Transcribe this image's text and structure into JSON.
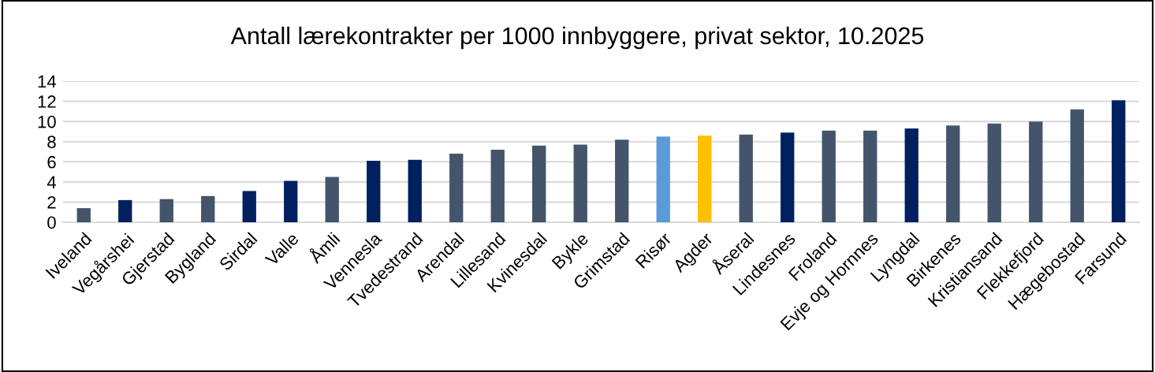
{
  "chart_data": {
    "type": "bar",
    "title": "Antall lærekontrakter per 1000 innbyggere, privat sektor, 10.2025",
    "categories": [
      "Iveland",
      "Vegårshei",
      "Gjerstad",
      "Bygland",
      "Sirdal",
      "Valle",
      "Åmli",
      "Vennesla",
      "Tvedestrand",
      "Arendal",
      "Lillesand",
      "Kvinesdal",
      "Bykle",
      "Grimstad",
      "Risør",
      "Agder",
      "Åseral",
      "Lindesnes",
      "Froland",
      "Evje og Hornnes",
      "Lyngdal",
      "Birkenes",
      "Kristiansand",
      "Flekkefjord",
      "Hægebostad",
      "Farsund"
    ],
    "values": [
      1.4,
      2.2,
      2.3,
      2.6,
      3.1,
      4.1,
      4.5,
      6.1,
      6.2,
      6.8,
      7.2,
      7.6,
      7.7,
      8.2,
      8.5,
      8.6,
      8.7,
      8.9,
      9.1,
      9.1,
      9.3,
      9.6,
      9.8,
      10.0,
      11.2,
      12.1
    ],
    "colors": [
      "#44546a",
      "#002060",
      "#44546a",
      "#44546a",
      "#002060",
      "#002060",
      "#44546a",
      "#002060",
      "#002060",
      "#44546a",
      "#44546a",
      "#44546a",
      "#44546a",
      "#44546a",
      "#5b9bd5",
      "#ffc000",
      "#44546a",
      "#002060",
      "#44546a",
      "#44546a",
      "#002060",
      "#44546a",
      "#44546a",
      "#44546a",
      "#44546a",
      "#002060"
    ],
    "ylim": [
      0,
      14
    ],
    "yticks": [
      0,
      2,
      4,
      6,
      8,
      10,
      12,
      14
    ],
    "grid": "y",
    "legend": false
  }
}
